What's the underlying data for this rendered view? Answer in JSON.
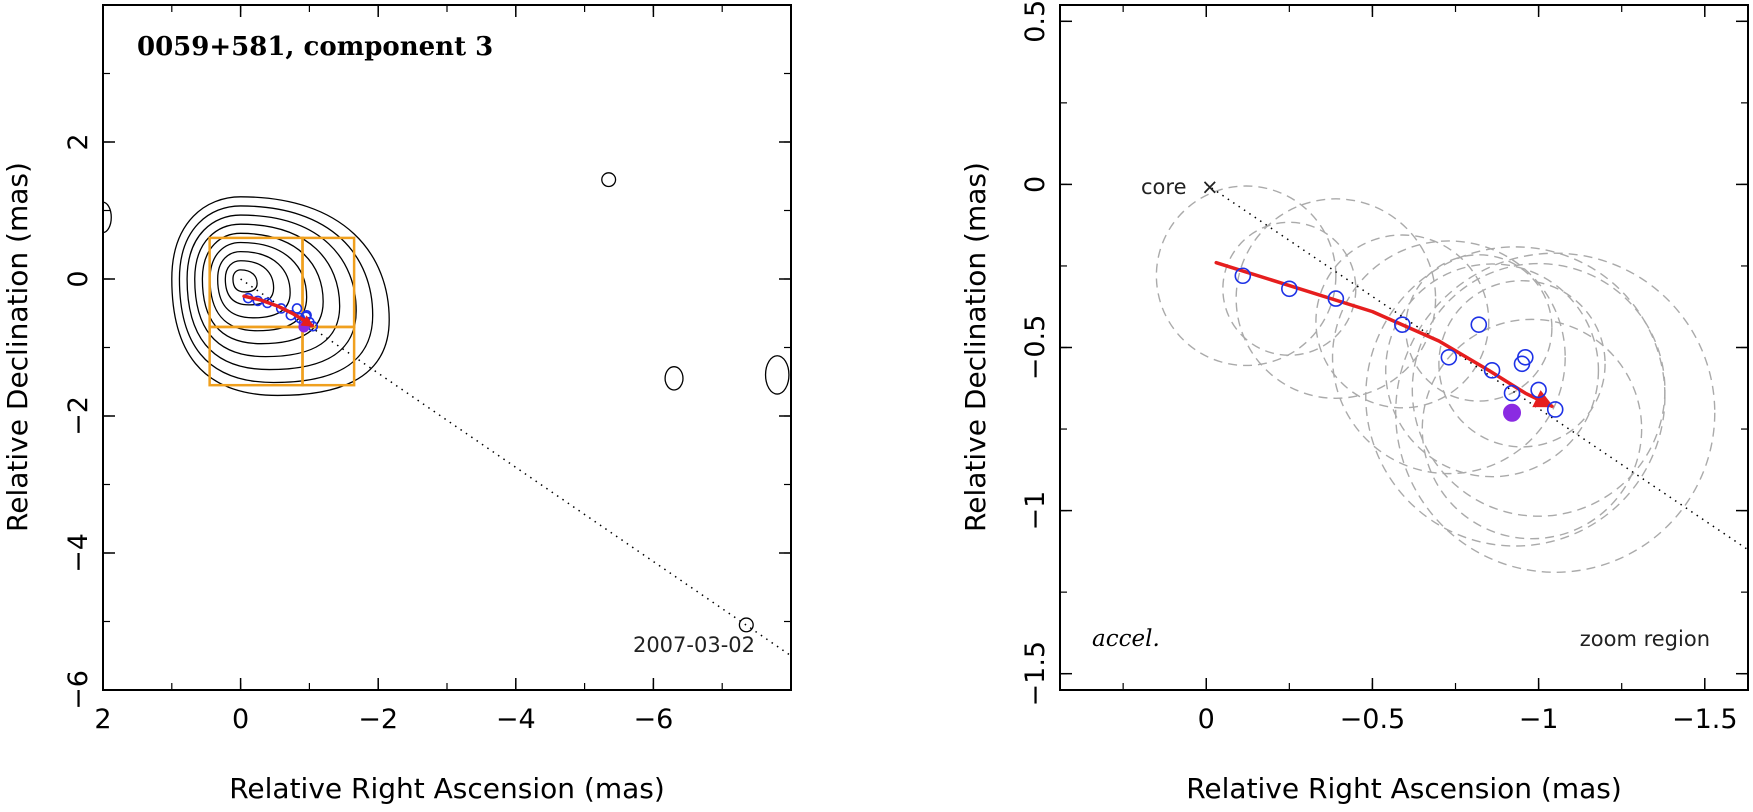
{
  "chart_data": [
    {
      "type": "scatter",
      "panel": "map",
      "title": "0059+581, component 3",
      "xlabel": "Relative Right Ascension (mas)",
      "ylabel": "Relative Declination (mas)",
      "xlim": [
        2,
        -8
      ],
      "ylim": [
        -6,
        4
      ],
      "xticks": [
        2,
        0,
        -2,
        -4,
        -6
      ],
      "xtick_labels": [
        "2",
        "0",
        "−2",
        "−4",
        "−6"
      ],
      "yticks": [
        2,
        0,
        -2,
        -4,
        -6
      ],
      "ytick_labels": [
        "2",
        "0",
        "−2",
        "−4",
        "−6"
      ],
      "epoch_label": "2007-03-02",
      "core": [
        0,
        0
      ],
      "jet_direction_line": {
        "from": [
          0,
          0
        ],
        "to": [
          -8,
          -5.5
        ]
      },
      "contour_levels": 9,
      "contour_extent": {
        "ra": [
          1.0,
          -2.4
        ],
        "dec": [
          1.2,
          -1.7
        ]
      },
      "zoom_boxes": [
        {
          "ra": [
            0.45,
            -0.9
          ],
          "dec": [
            0.6,
            -0.7
          ]
        },
        {
          "ra": [
            -0.9,
            -1.65
          ],
          "dec": [
            0.6,
            -0.7
          ]
        },
        {
          "ra": [
            0.45,
            -0.9
          ],
          "dec": [
            -0.7,
            -1.55
          ]
        },
        {
          "ra": [
            -0.9,
            -1.65
          ],
          "dec": [
            -0.7,
            -1.55
          ]
        }
      ],
      "positions": {
        "ra": [
          -0.11,
          -0.25,
          -0.39,
          -0.59,
          -0.73,
          -0.82,
          -0.86,
          -0.92,
          -0.95,
          -0.96,
          -1.0,
          -1.05
        ],
        "dec": [
          -0.28,
          -0.32,
          -0.35,
          -0.43,
          -0.53,
          -0.43,
          -0.57,
          -0.64,
          -0.55,
          -0.53,
          -0.63,
          -0.69
        ]
      },
      "latest_position": {
        "ra": -0.92,
        "dec": -0.7
      },
      "acceleration_track": {
        "ra": [
          -0.05,
          -0.3,
          -0.55,
          -0.75,
          -0.9,
          -0.99,
          -1.04
        ],
        "dec": [
          -0.25,
          -0.31,
          -0.4,
          -0.5,
          -0.59,
          -0.65,
          -0.68
        ]
      }
    },
    {
      "type": "scatter",
      "panel": "zoom",
      "xlabel": "Relative Right Ascension (mas)",
      "ylabel": "Relative Declination (mas)",
      "xlim": [
        0.44,
        -1.63
      ],
      "ylim": [
        -1.55,
        0.55
      ],
      "xticks": [
        0,
        -0.5,
        -1,
        -1.5
      ],
      "xtick_labels": [
        "0",
        "−0.5",
        "−1",
        "−1.5"
      ],
      "yticks": [
        0.5,
        0,
        -0.5,
        -1,
        -1.5
      ],
      "ytick_labels": [
        "0.5",
        "0",
        "−0.5",
        "−1",
        "−1.5"
      ],
      "core_label": "core",
      "core_marker": "×",
      "corner_left_label": "accel.",
      "corner_right_label": "zoom region",
      "positions": {
        "ra": [
          -0.11,
          -0.25,
          -0.39,
          -0.59,
          -0.73,
          -0.82,
          -0.86,
          -0.92,
          -0.95,
          -0.96,
          -1.0,
          -1.05
        ],
        "dec": [
          -0.28,
          -0.32,
          -0.35,
          -0.43,
          -0.53,
          -0.43,
          -0.57,
          -0.64,
          -0.55,
          -0.53,
          -0.63,
          -0.69
        ]
      },
      "latest_position": {
        "ra": -0.92,
        "dec": -0.7
      },
      "component_size_circles": [
        {
          "ra": -0.12,
          "dec": -0.28,
          "r": 0.27
        },
        {
          "ra": -0.25,
          "dec": -0.32,
          "r": 0.2
        },
        {
          "ra": -0.39,
          "dec": -0.35,
          "r": 0.3
        },
        {
          "ra": -0.59,
          "dec": -0.42,
          "r": 0.26
        },
        {
          "ra": -0.73,
          "dec": -0.53,
          "r": 0.35
        },
        {
          "ra": -0.82,
          "dec": -0.44,
          "r": 0.22
        },
        {
          "ra": -0.86,
          "dec": -0.57,
          "r": 0.32
        },
        {
          "ra": -0.93,
          "dec": -0.65,
          "r": 0.45
        },
        {
          "ra": -0.95,
          "dec": -0.55,
          "r": 0.25
        },
        {
          "ra": -1.0,
          "dec": -0.63,
          "r": 0.38
        },
        {
          "ra": -1.05,
          "dec": -0.7,
          "r": 0.48
        },
        {
          "ra": -0.98,
          "dec": -0.75,
          "r": 0.33
        }
      ],
      "jet_direction_line": {
        "from": [
          0,
          0
        ],
        "to": [
          -1.63,
          -1.12
        ]
      },
      "acceleration_track": {
        "ra": [
          -0.03,
          -0.25,
          -0.5,
          -0.7,
          -0.85,
          -0.96,
          -1.04
        ],
        "dec": [
          -0.24,
          -0.31,
          -0.39,
          -0.48,
          -0.57,
          -0.64,
          -0.68
        ]
      }
    }
  ],
  "colors": {
    "axis": "#000000",
    "contour": "#000000",
    "zoom_box": "#f0a01e",
    "position_marker": "#1e32e6",
    "latest_marker": "#8a2be2",
    "track": "#e61e1e",
    "size_circle": "#aaaaaa"
  }
}
